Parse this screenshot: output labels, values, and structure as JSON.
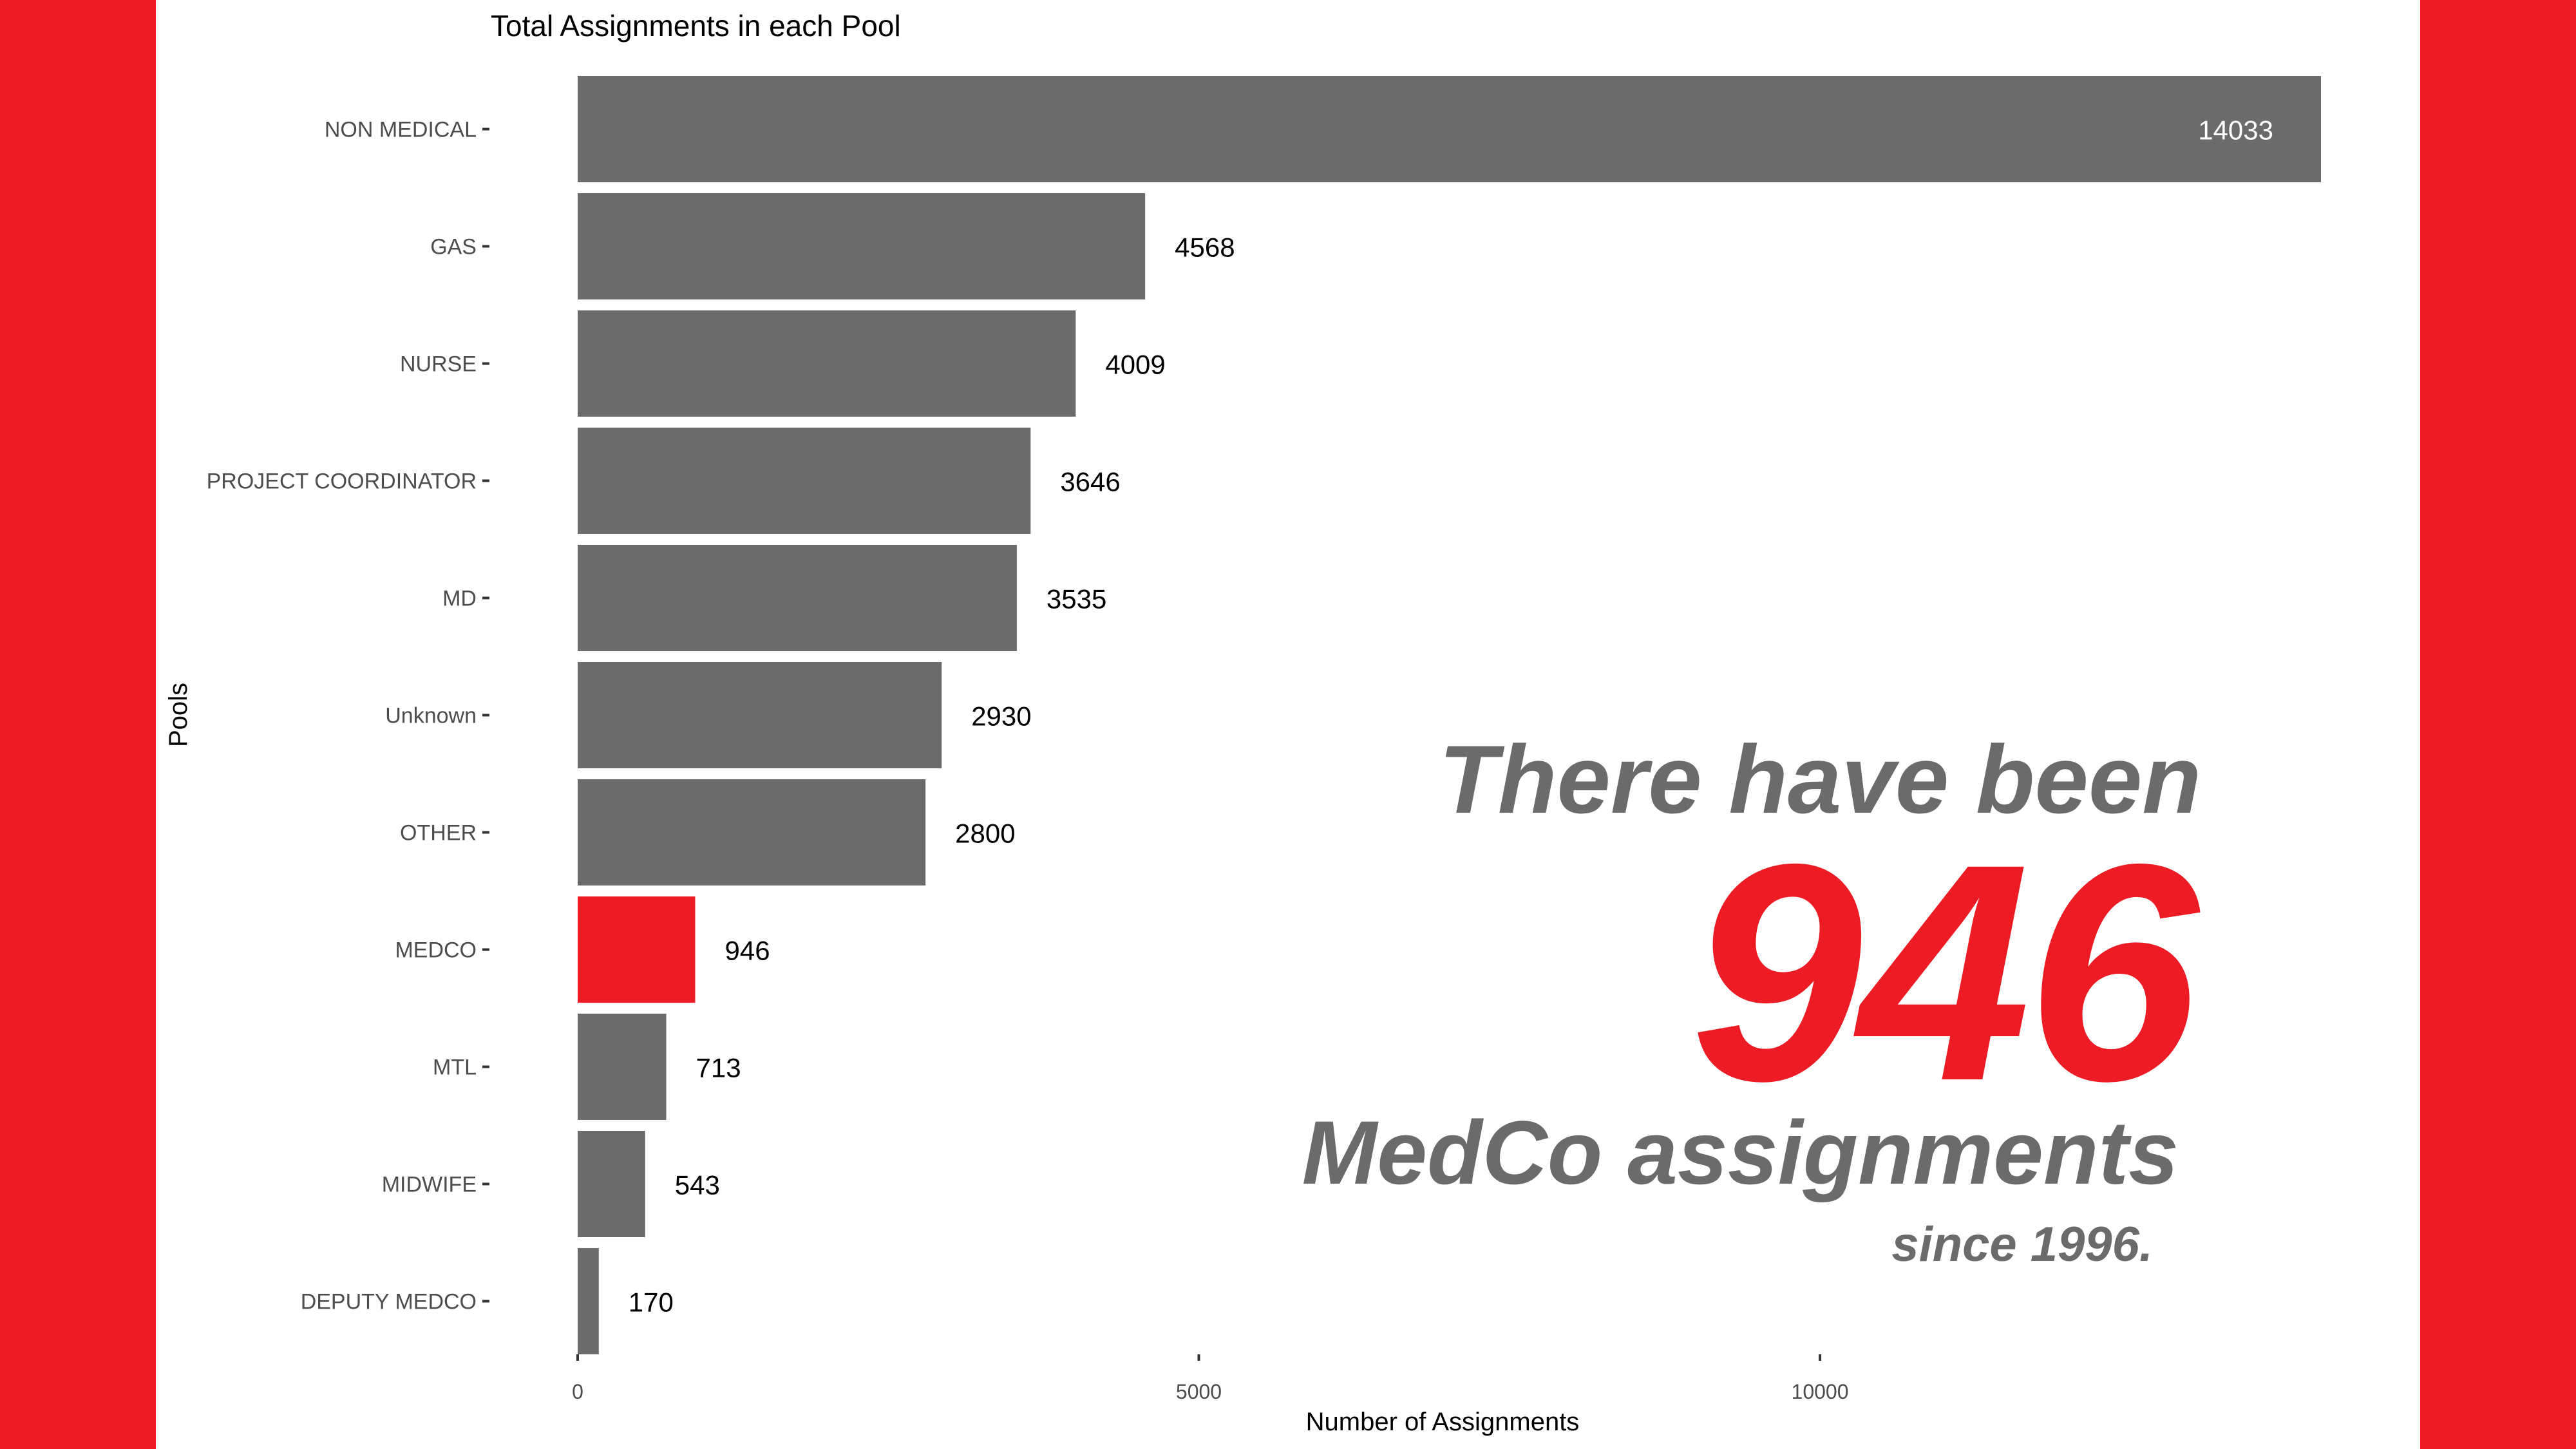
{
  "colors": {
    "band": "#ed1c24",
    "bar": "#6b6b6b",
    "highlight": "#ed1c24",
    "callout_gray": "#6b6b6b"
  },
  "chart_data": {
    "type": "bar",
    "orientation": "horizontal",
    "title": "Total Assignments in each Pool",
    "xlabel": "Number of Assignments",
    "ylabel": "Pools",
    "categories": [
      "NON MEDICAL",
      "GAS",
      "NURSE",
      "PROJECT COORDINATOR",
      "MD",
      "Unknown",
      "OTHER",
      "MEDCO",
      "MTL",
      "MIDWIFE",
      "DEPUTY MEDCO"
    ],
    "values": [
      14033,
      4568,
      4009,
      3646,
      3535,
      2930,
      2800,
      946,
      713,
      543,
      170
    ],
    "highlight_category": "MEDCO",
    "xlim": [
      0,
      14033
    ],
    "xticks": [
      0,
      5000,
      10000
    ],
    "grid": false,
    "legend": "none"
  },
  "callout": {
    "line1": "There have been",
    "number": "946",
    "line3": "MedCo assignments",
    "line4": "since 1996."
  }
}
